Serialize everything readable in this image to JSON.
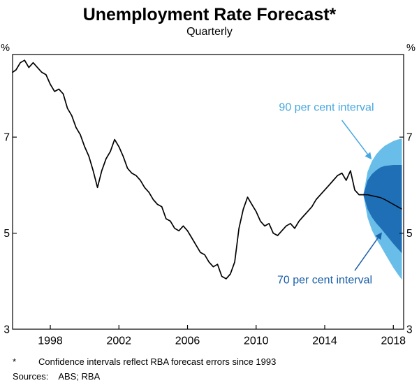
{
  "header": {
    "title": "Unemployment Rate Forecast*",
    "subtitle": "Quarterly"
  },
  "footnotes": {
    "marker": "*",
    "note": "Confidence intervals reflect RBA forecast errors since 1993",
    "sources_label": "Sources:",
    "sources": "ABS; RBA"
  },
  "chart_data": {
    "type": "line",
    "title": "Unemployment Rate Forecast*",
    "subtitle": "Quarterly",
    "unit": "%",
    "xlim": [
      1995.8,
      2018.6
    ],
    "ylim": [
      3,
      8.72
    ],
    "xticks": [
      1998,
      2002,
      2006,
      2010,
      2014,
      2018
    ],
    "yticks": [
      3,
      5,
      7
    ],
    "grid": false,
    "legend": "annotations",
    "colors": {
      "history": "#000000",
      "forecast_line": "#000000",
      "interval90": "#69BEE9",
      "interval70": "#1E6FB5",
      "label90": "#45A7DF",
      "label70": "#1A5FA9",
      "axis": "#000000"
    },
    "history": {
      "name": "Unemployment rate (quarterly, %)",
      "x": [
        1995.8,
        1996,
        1996.25,
        1996.5,
        1996.75,
        1997,
        1997.25,
        1997.5,
        1997.75,
        1998,
        1998.25,
        1998.5,
        1998.75,
        1999,
        1999.25,
        1999.5,
        1999.75,
        2000,
        2000.25,
        2000.5,
        2000.75,
        2001,
        2001.25,
        2001.5,
        2001.75,
        2002,
        2002.25,
        2002.5,
        2002.75,
        2003,
        2003.25,
        2003.5,
        2003.75,
        2004,
        2004.25,
        2004.5,
        2004.75,
        2005,
        2005.25,
        2005.5,
        2005.75,
        2006,
        2006.25,
        2006.5,
        2006.75,
        2007,
        2007.25,
        2007.5,
        2007.75,
        2008,
        2008.25,
        2008.5,
        2008.75,
        2009,
        2009.25,
        2009.5,
        2009.75,
        2010,
        2010.25,
        2010.5,
        2010.75,
        2011,
        2011.25,
        2011.5,
        2011.75,
        2012,
        2012.25,
        2012.5,
        2012.75,
        2013,
        2013.25,
        2013.5,
        2013.75,
        2014,
        2014.25,
        2014.5,
        2014.75,
        2015,
        2015.25,
        2015.5,
        2015.75,
        2016,
        2016.25
      ],
      "y": [
        8.35,
        8.4,
        8.55,
        8.6,
        8.45,
        8.55,
        8.45,
        8.35,
        8.3,
        8.1,
        7.95,
        8.0,
        7.9,
        7.6,
        7.45,
        7.2,
        7.05,
        6.8,
        6.6,
        6.3,
        5.95,
        6.3,
        6.55,
        6.7,
        6.95,
        6.8,
        6.6,
        6.35,
        6.25,
        6.2,
        6.1,
        5.95,
        5.85,
        5.7,
        5.6,
        5.55,
        5.3,
        5.25,
        5.1,
        5.05,
        5.15,
        5.05,
        4.9,
        4.75,
        4.6,
        4.55,
        4.4,
        4.3,
        4.35,
        4.1,
        4.05,
        4.15,
        4.4,
        5.1,
        5.5,
        5.75,
        5.6,
        5.45,
        5.25,
        5.15,
        5.2,
        5.0,
        4.95,
        5.05,
        5.15,
        5.2,
        5.1,
        5.25,
        5.35,
        5.45,
        5.55,
        5.7,
        5.8,
        5.9,
        6.0,
        6.1,
        6.2,
        6.25,
        6.1,
        6.3,
        5.9,
        5.8,
        5.8
      ]
    },
    "forecast": {
      "x": [
        2016.25,
        2016.5,
        2016.75,
        2017,
        2017.25,
        2017.5,
        2017.75,
        2018,
        2018.25,
        2018.5
      ],
      "central": [
        5.8,
        5.8,
        5.78,
        5.76,
        5.74,
        5.7,
        5.65,
        5.6,
        5.55,
        5.5
      ],
      "band70_upper": [
        5.8,
        6.1,
        6.23,
        6.31,
        6.37,
        6.4,
        6.41,
        6.42,
        6.42,
        6.42
      ],
      "band70_lower": [
        5.8,
        5.5,
        5.33,
        5.21,
        5.11,
        5.0,
        4.89,
        4.78,
        4.68,
        4.58
      ],
      "band90_upper": [
        5.8,
        6.28,
        6.5,
        6.64,
        6.74,
        6.82,
        6.87,
        6.92,
        6.95,
        6.97
      ],
      "band90_lower": [
        5.8,
        5.32,
        5.06,
        4.88,
        4.74,
        4.58,
        4.43,
        4.28,
        4.15,
        4.03
      ]
    },
    "annotations": [
      {
        "id": "interval-90",
        "text": "90 per cent interval",
        "color": "#45A7DF",
        "text_x": 2014.1,
        "text_y": 7.55,
        "arrow_from": [
          2015.0,
          7.35
        ],
        "arrow_to": [
          2016.7,
          6.55
        ]
      },
      {
        "id": "interval-70",
        "text": "70 per cent interval",
        "color": "#1A5FA9",
        "text_x": 2014.0,
        "text_y": 3.95,
        "arrow_from": [
          2015.75,
          4.22
        ],
        "arrow_to": [
          2017.3,
          5.0
        ]
      }
    ]
  }
}
